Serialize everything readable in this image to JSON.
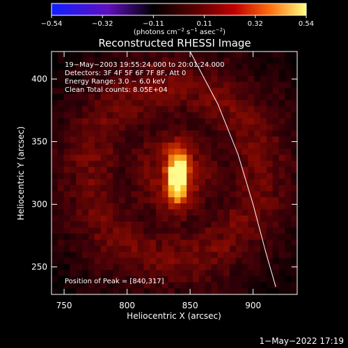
{
  "chart_data": {
    "type": "heatmap",
    "title": "Reconstructed RHESSI Image",
    "xlabel": "Heliocentric X (arcsec)",
    "ylabel": "Heliocentric Y (arcsec)",
    "xlim": [
      740,
      935
    ],
    "ylim": [
      228,
      422
    ],
    "x_ticks": [
      750,
      800,
      850,
      900
    ],
    "y_ticks": [
      250,
      300,
      350,
      400
    ],
    "colorbar": {
      "range": [
        -0.54,
        0.54
      ],
      "ticks": [
        "−0.54",
        "−0.32",
        "−0.11",
        "0.11",
        "0.32",
        "0.54"
      ],
      "unit_base": "(photons cm",
      "unit_sup1": "−2",
      "unit_mid1": " s",
      "unit_sup2": "−1",
      "unit_mid2": " asec",
      "unit_sup3": "−2",
      "unit_end": ")"
    },
    "annotations": [
      "19−May−2003 19:55:24.000 to 20:01:24.000",
      "Detectors: 3F 4F 5F 6F 7F 8F, Att 0",
      "Energy Range: 3.0 − 6.0 keV",
      "Clean     Total counts: 8.05E+04"
    ],
    "peak_label": "Position of Peak = [840,317]",
    "peak": {
      "x": 840,
      "y": 317,
      "value": 0.54
    },
    "limb_curve": [
      [
        850,
        422
      ],
      [
        872,
        380
      ],
      [
        888,
        340
      ],
      [
        900,
        300
      ],
      [
        910,
        262
      ],
      [
        918,
        234
      ]
    ],
    "colors": {
      "limb": "#ffffff",
      "background": "#000000"
    }
  },
  "footer": {
    "timestamp": "1−May−2022 17:19"
  }
}
